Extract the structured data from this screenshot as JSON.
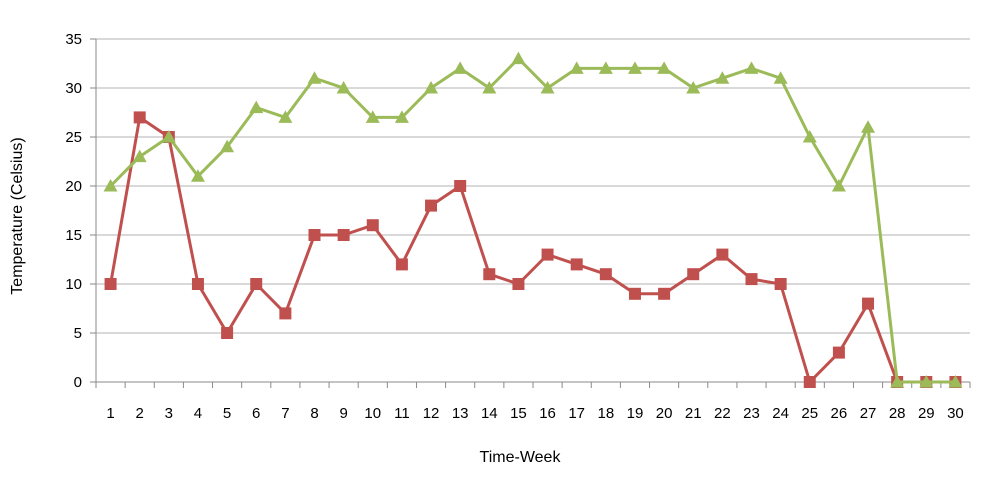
{
  "chart_data": {
    "type": "line",
    "title": "",
    "xlabel": "Time-Week",
    "ylabel": "Temperature (Celsius)",
    "ylim": [
      0,
      35
    ],
    "yticks": [
      0,
      5,
      10,
      15,
      20,
      25,
      30,
      35
    ],
    "x": [
      1,
      2,
      3,
      4,
      5,
      6,
      7,
      8,
      9,
      10,
      11,
      12,
      13,
      14,
      15,
      16,
      17,
      18,
      19,
      20,
      21,
      22,
      23,
      24,
      25,
      26,
      27,
      28,
      29,
      30
    ],
    "x_tick_labels": [
      "1",
      "2",
      "3",
      "4",
      "5",
      "6",
      "7",
      "8",
      "9",
      "10",
      "11",
      "12",
      "13",
      "14",
      "15",
      "16",
      "17",
      "18",
      "19",
      "20",
      "21",
      "22",
      "23",
      "24",
      "25",
      "26",
      "27",
      "28",
      "29",
      "30"
    ],
    "grid": "horizontal",
    "legend": "none",
    "series": [
      {
        "color": "#c0504d",
        "marker": "square",
        "values": [
          10,
          27,
          25,
          10,
          5,
          10,
          7,
          15,
          15,
          16,
          12,
          18,
          20,
          11,
          10,
          13,
          12,
          11,
          9,
          9,
          11,
          13,
          10.5,
          10,
          0,
          3,
          8,
          0,
          0,
          0
        ]
      },
      {
        "color": "#9bbb59",
        "marker": "triangle",
        "values": [
          20,
          23,
          25,
          21,
          24,
          28,
          27,
          31,
          30,
          27,
          27,
          30,
          32,
          30,
          33,
          30,
          32,
          32,
          32,
          32,
          30,
          31,
          32,
          31,
          25,
          20,
          26,
          0,
          0,
          0
        ]
      }
    ]
  }
}
